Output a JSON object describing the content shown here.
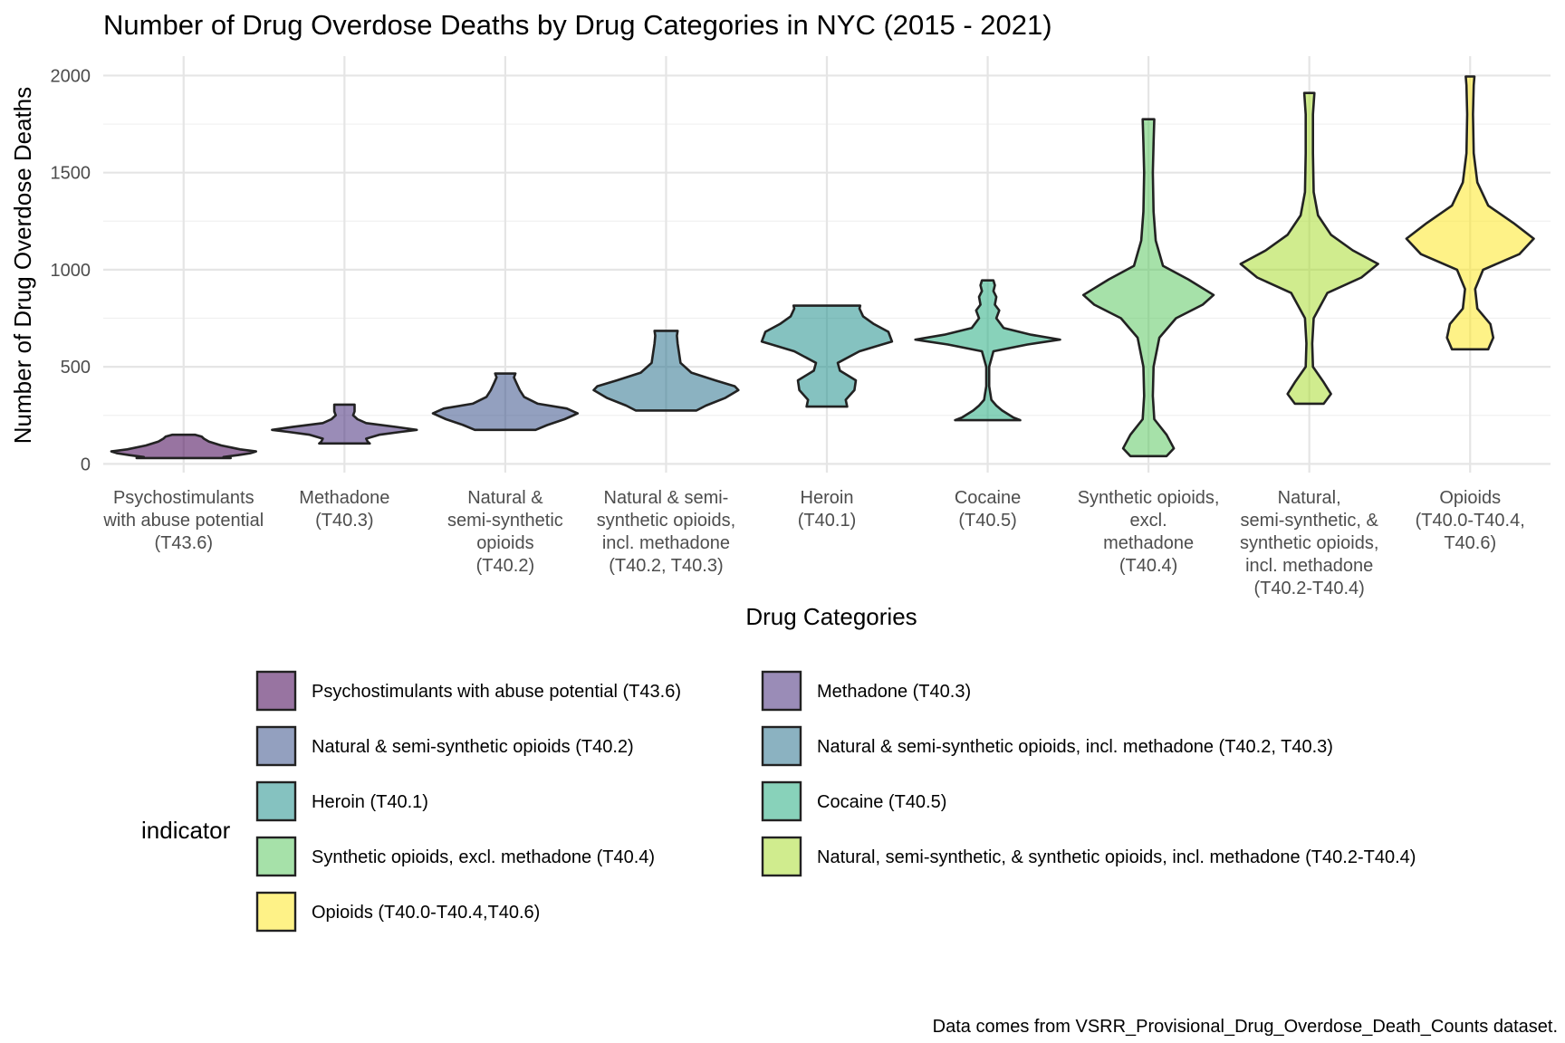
{
  "chart_data": {
    "type": "violin",
    "title": "Number of Drug Overdose Deaths by Drug Categories in NYC (2015 - 2021)",
    "xlabel": "Drug Categories",
    "ylabel": "Number of Drug Overdose Deaths",
    "ylim": [
      -45,
      2100
    ],
    "yticks": [
      0,
      500,
      1000,
      1500,
      2000
    ],
    "grid": true,
    "legend": {
      "title": "indicator",
      "placement": "left-bottom"
    },
    "caption": "Data comes from VSRR_Provisional_Drug_Overdose_Death_Counts dataset.",
    "categories": [
      {
        "tick_lines": [
          "Psychostimulants",
          "with abuse potential",
          "(T43.6)"
        ],
        "legend": "Psychostimulants with abuse potential (T43.6)",
        "color": "#440154",
        "density": [
          [
            30,
            0.65
          ],
          [
            35,
            0.55
          ],
          [
            45,
            0.75
          ],
          [
            55,
            0.92
          ],
          [
            64,
            1.0
          ],
          [
            75,
            0.78
          ],
          [
            95,
            0.52
          ],
          [
            115,
            0.35
          ],
          [
            130,
            0.28
          ],
          [
            140,
            0.25
          ],
          [
            150,
            0.16
          ]
        ]
      },
      {
        "tick_lines": [
          "Methadone",
          "(T40.3)"
        ],
        "legend": "Methadone (T40.3)",
        "color": "#472D7B",
        "density": [
          [
            105,
            0.35
          ],
          [
            115,
            0.32
          ],
          [
            130,
            0.3
          ],
          [
            150,
            0.48
          ],
          [
            165,
            0.78
          ],
          [
            175,
            1.0
          ],
          [
            190,
            0.72
          ],
          [
            210,
            0.3
          ],
          [
            230,
            0.18
          ],
          [
            250,
            0.12
          ],
          [
            270,
            0.14
          ],
          [
            290,
            0.14
          ],
          [
            305,
            0.14
          ]
        ]
      },
      {
        "tick_lines": [
          "Natural &",
          "semi-synthetic",
          "opioids",
          "(T40.2)"
        ],
        "legend": "Natural & semi-synthetic opioids (T40.2)",
        "color": "#3B528B",
        "density": [
          [
            175,
            0.42
          ],
          [
            200,
            0.58
          ],
          [
            230,
            0.82
          ],
          [
            260,
            1.0
          ],
          [
            285,
            0.85
          ],
          [
            310,
            0.45
          ],
          [
            345,
            0.26
          ],
          [
            380,
            0.2
          ],
          [
            420,
            0.15
          ],
          [
            445,
            0.12
          ],
          [
            465,
            0.14
          ]
        ]
      },
      {
        "tick_lines": [
          "Natural & semi-",
          "synthetic opioids,",
          "incl. methadone",
          "(T40.2, T40.3)"
        ],
        "legend": "Natural & semi-synthetic opioids, incl. methadone (T40.2, T40.3)",
        "color": "#2C728E",
        "density": [
          [
            275,
            0.42
          ],
          [
            300,
            0.55
          ],
          [
            340,
            0.82
          ],
          [
            380,
            1.0
          ],
          [
            400,
            0.95
          ],
          [
            430,
            0.68
          ],
          [
            470,
            0.35
          ],
          [
            520,
            0.2
          ],
          [
            570,
            0.18
          ],
          [
            620,
            0.16
          ],
          [
            660,
            0.15
          ],
          [
            685,
            0.16
          ]
        ]
      },
      {
        "tick_lines": [
          "Heroin",
          "(T40.1)"
        ],
        "legend": "Heroin (T40.1)",
        "color": "#21908C",
        "density": [
          [
            295,
            0.28
          ],
          [
            330,
            0.26
          ],
          [
            380,
            0.38
          ],
          [
            430,
            0.4
          ],
          [
            480,
            0.18
          ],
          [
            520,
            0.15
          ],
          [
            580,
            0.45
          ],
          [
            630,
            0.9
          ],
          [
            680,
            0.85
          ],
          [
            720,
            0.65
          ],
          [
            760,
            0.5
          ],
          [
            800,
            0.45
          ],
          [
            815,
            0.46
          ]
        ]
      },
      {
        "tick_lines": [
          "Cocaine",
          "(T40.5)"
        ],
        "legend": "Cocaine (T40.5)",
        "color": "#27AD81",
        "density": [
          [
            225,
            0.45
          ],
          [
            240,
            0.35
          ],
          [
            275,
            0.2
          ],
          [
            300,
            0.12
          ],
          [
            330,
            0.05
          ],
          [
            400,
            0.02
          ],
          [
            500,
            0.02
          ],
          [
            580,
            0.08
          ],
          [
            615,
            0.55
          ],
          [
            640,
            1.0
          ],
          [
            665,
            0.6
          ],
          [
            700,
            0.22
          ],
          [
            750,
            0.12
          ],
          [
            790,
            0.16
          ],
          [
            820,
            0.1
          ],
          [
            860,
            0.12
          ],
          [
            890,
            0.08
          ],
          [
            920,
            0.1
          ],
          [
            945,
            0.08
          ]
        ]
      },
      {
        "tick_lines": [
          "Synthetic opioids,",
          "excl.",
          "methadone",
          "(T40.4)"
        ],
        "legend": "Synthetic opioids, excl. methadone (T40.4)",
        "color": "#5DC863",
        "density": [
          [
            40,
            0.25
          ],
          [
            80,
            0.35
          ],
          [
            150,
            0.25
          ],
          [
            230,
            0.08
          ],
          [
            350,
            0.06
          ],
          [
            500,
            0.07
          ],
          [
            650,
            0.15
          ],
          [
            750,
            0.38
          ],
          [
            820,
            0.75
          ],
          [
            870,
            0.9
          ],
          [
            950,
            0.55
          ],
          [
            1020,
            0.2
          ],
          [
            1150,
            0.1
          ],
          [
            1300,
            0.07
          ],
          [
            1500,
            0.06
          ],
          [
            1650,
            0.07
          ],
          [
            1775,
            0.08
          ]
        ]
      },
      {
        "tick_lines": [
          "Natural,",
          "semi-synthetic, &",
          "synthetic opioids,",
          "incl. methadone",
          "(T40.2-T40.4)"
        ],
        "legend": "Natural, semi-synthetic, & synthetic opioids, incl. methadone (T40.2-T40.4)",
        "color": "#AADC32",
        "density": [
          [
            310,
            0.2
          ],
          [
            360,
            0.3
          ],
          [
            420,
            0.2
          ],
          [
            500,
            0.05
          ],
          [
            620,
            0.04
          ],
          [
            750,
            0.06
          ],
          [
            880,
            0.25
          ],
          [
            960,
            0.72
          ],
          [
            1030,
            0.95
          ],
          [
            1100,
            0.6
          ],
          [
            1180,
            0.3
          ],
          [
            1280,
            0.12
          ],
          [
            1400,
            0.06
          ],
          [
            1600,
            0.05
          ],
          [
            1800,
            0.05
          ],
          [
            1910,
            0.07
          ]
        ]
      },
      {
        "tick_lines": [
          "Opioids",
          "(T40.0-T40.4,",
          "T40.6)"
        ],
        "legend": "Opioids (T40.0-T40.4,T40.6)",
        "color": "#FDE725",
        "density": [
          [
            590,
            0.25
          ],
          [
            650,
            0.32
          ],
          [
            720,
            0.28
          ],
          [
            800,
            0.1
          ],
          [
            900,
            0.07
          ],
          [
            1000,
            0.18
          ],
          [
            1080,
            0.68
          ],
          [
            1160,
            0.88
          ],
          [
            1240,
            0.6
          ],
          [
            1330,
            0.25
          ],
          [
            1450,
            0.1
          ],
          [
            1600,
            0.05
          ],
          [
            1800,
            0.04
          ],
          [
            1950,
            0.05
          ],
          [
            1995,
            0.06
          ]
        ]
      }
    ]
  }
}
